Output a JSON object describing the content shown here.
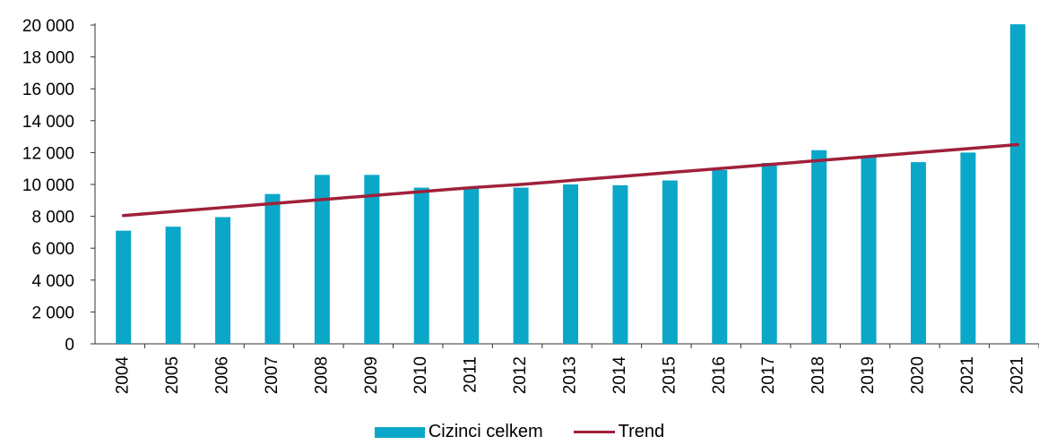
{
  "chart_data": {
    "type": "bar",
    "categories": [
      "2004",
      "2005",
      "2006",
      "2007",
      "2008",
      "2009",
      "2010",
      "2011",
      "2012",
      "2013",
      "2014",
      "2015",
      "2016",
      "2017",
      "2018",
      "2019",
      "2020",
      "2021",
      "2021"
    ],
    "series": [
      {
        "name": "Cizinci celkem",
        "type": "bar",
        "color": "#0aa7c9",
        "values": [
          7100,
          7350,
          7950,
          9400,
          10600,
          10600,
          9800,
          9750,
          9800,
          10000,
          9950,
          10250,
          10900,
          11350,
          12150,
          11750,
          11400,
          12000,
          20050
        ]
      },
      {
        "name": "Trend",
        "type": "line",
        "color": "#a0203a",
        "values": [
          8050,
          8300,
          8550,
          8800,
          9050,
          9300,
          9550,
          9800,
          10000,
          10250,
          10500,
          10750,
          11000,
          11250,
          11500,
          11750,
          12000,
          12250,
          12500
        ]
      }
    ],
    "y_tick_labels": [
      "0",
      "2 000",
      "4 000",
      "6 000",
      "8 000",
      "10 000",
      "12 000",
      "14 000",
      "16 000",
      "18 000",
      "20 000"
    ],
    "ylim": [
      0,
      20000
    ],
    "ystep": 2000,
    "grid": false,
    "legend_position": "bottom"
  }
}
